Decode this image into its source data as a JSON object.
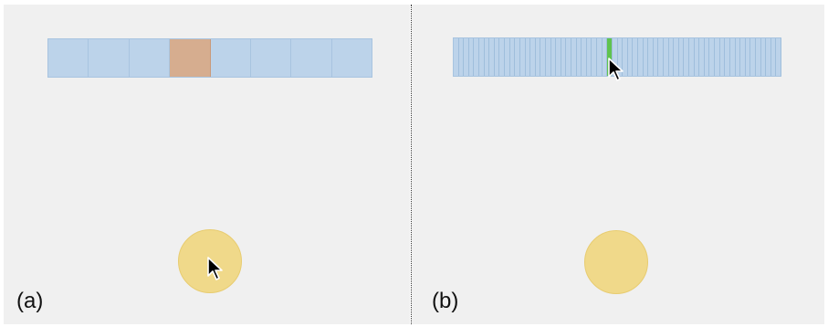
{
  "panels": [
    {
      "label": "(a)",
      "strip": {
        "cell_count": 8,
        "selected_index": 3,
        "selected_color": "#d6ad8f"
      },
      "cursor_icon": "arrow-cursor-icon"
    },
    {
      "label": "(b)",
      "strip": {
        "cell_count": 64,
        "selected_index": 30,
        "selected_color": "#5fc34f"
      },
      "cursor_icon": "arrow-cursor-icon"
    }
  ],
  "colors": {
    "background": "#f0f0f0",
    "cell": "#bcd3ea",
    "cell_border": "#a8c4e0",
    "target": "#f0d98a"
  }
}
